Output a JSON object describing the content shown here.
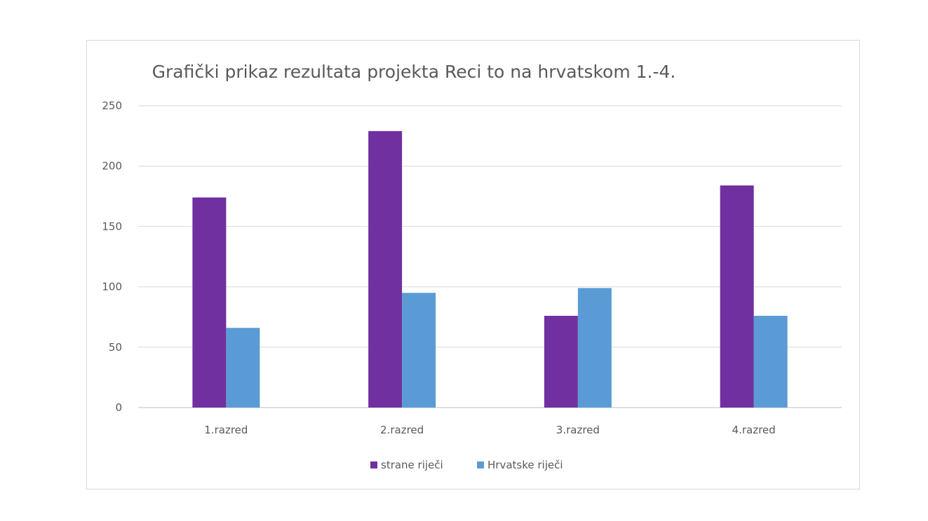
{
  "chart_data": {
    "type": "bar",
    "title": "Grafički prikaz rezultata projekta Reci to na hrvatskom 1.-4.",
    "xlabel": "",
    "ylabel": "",
    "categories": [
      "1.razred",
      "2.razred",
      "3.razred",
      "4.razred"
    ],
    "series": [
      {
        "name": "strane riječi",
        "values": [
          174,
          229,
          76,
          184
        ],
        "color": "#7030a0"
      },
      {
        "name": "Hrvatske riječi",
        "values": [
          66,
          95,
          99,
          76
        ],
        "color": "#5b9bd5"
      }
    ],
    "ylim": [
      0,
      250
    ],
    "yticks": [
      "0",
      "50",
      "100",
      "150",
      "200",
      "250"
    ],
    "grid": true,
    "legend_position": "bottom"
  }
}
